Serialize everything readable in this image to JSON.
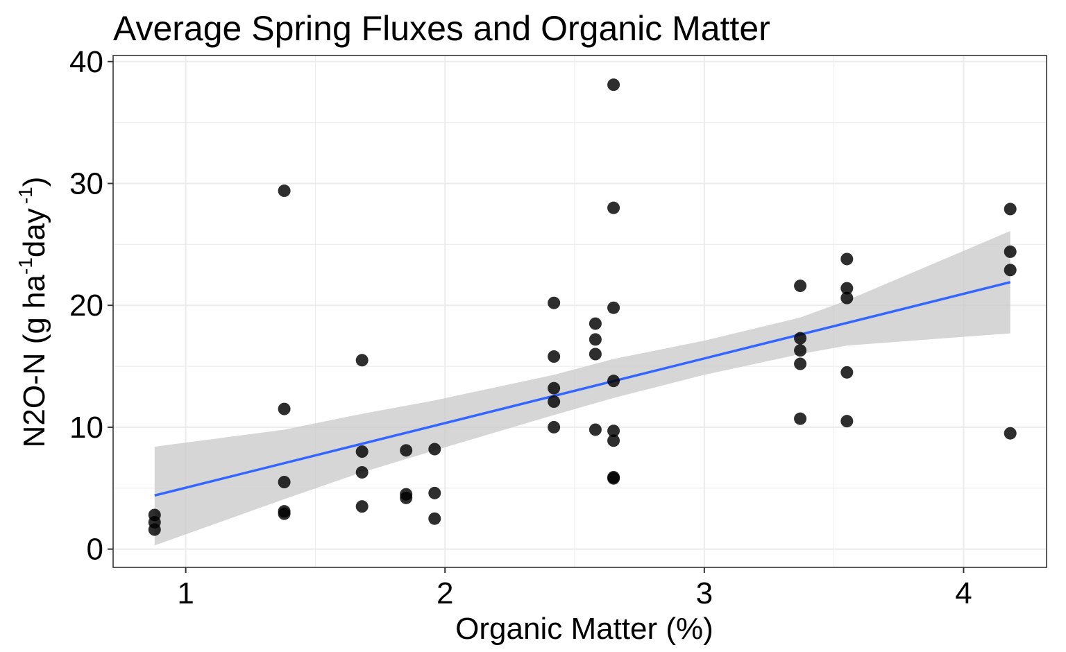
{
  "chart_data": {
    "type": "scatter",
    "title": "Average Spring Fluxes and Organic Matter",
    "xlabel": "Organic Matter (%)",
    "ylabel": {
      "base": "N2O-N (g ha",
      "sup1": "-1",
      "mid": "day",
      "sup2": "-1",
      "end": ")"
    },
    "xlim": [
      0.72,
      4.32
    ],
    "ylim": [
      -1.5,
      40.5
    ],
    "x_ticks": [
      1,
      2,
      3,
      4
    ],
    "y_ticks": [
      0,
      10,
      20,
      30,
      40
    ],
    "grid": true,
    "legend": "none",
    "colors": {
      "points": "#000000",
      "fit_line": "#3366ff",
      "confidence_band": "#cccccc",
      "grid": "#ebebeb",
      "panel_border": "#333333"
    },
    "points": [
      {
        "x": 0.88,
        "y": 2.8
      },
      {
        "x": 0.88,
        "y": 2.2
      },
      {
        "x": 0.88,
        "y": 1.6
      },
      {
        "x": 1.38,
        "y": 29.4
      },
      {
        "x": 1.38,
        "y": 11.5
      },
      {
        "x": 1.38,
        "y": 5.5
      },
      {
        "x": 1.38,
        "y": 3.1
      },
      {
        "x": 1.38,
        "y": 2.9
      },
      {
        "x": 1.68,
        "y": 15.5
      },
      {
        "x": 1.68,
        "y": 8.0
      },
      {
        "x": 1.68,
        "y": 6.3
      },
      {
        "x": 1.68,
        "y": 3.5
      },
      {
        "x": 1.85,
        "y": 8.1
      },
      {
        "x": 1.85,
        "y": 4.5
      },
      {
        "x": 1.85,
        "y": 4.2
      },
      {
        "x": 1.96,
        "y": 8.2
      },
      {
        "x": 1.96,
        "y": 4.6
      },
      {
        "x": 1.96,
        "y": 2.5
      },
      {
        "x": 2.42,
        "y": 20.2
      },
      {
        "x": 2.42,
        "y": 15.8
      },
      {
        "x": 2.42,
        "y": 13.2
      },
      {
        "x": 2.42,
        "y": 12.1
      },
      {
        "x": 2.42,
        "y": 10.0
      },
      {
        "x": 2.58,
        "y": 18.5
      },
      {
        "x": 2.58,
        "y": 17.2
      },
      {
        "x": 2.58,
        "y": 16.0
      },
      {
        "x": 2.58,
        "y": 9.8
      },
      {
        "x": 2.65,
        "y": 38.1
      },
      {
        "x": 2.65,
        "y": 28.0
      },
      {
        "x": 2.65,
        "y": 19.8
      },
      {
        "x": 2.65,
        "y": 13.8
      },
      {
        "x": 2.65,
        "y": 9.7
      },
      {
        "x": 2.65,
        "y": 8.9
      },
      {
        "x": 2.65,
        "y": 5.9
      },
      {
        "x": 2.65,
        "y": 5.8
      },
      {
        "x": 3.37,
        "y": 21.6
      },
      {
        "x": 3.37,
        "y": 17.3
      },
      {
        "x": 3.37,
        "y": 16.3
      },
      {
        "x": 3.37,
        "y": 15.2
      },
      {
        "x": 3.37,
        "y": 10.7
      },
      {
        "x": 3.55,
        "y": 23.8
      },
      {
        "x": 3.55,
        "y": 21.4
      },
      {
        "x": 3.55,
        "y": 20.6
      },
      {
        "x": 3.55,
        "y": 14.5
      },
      {
        "x": 3.55,
        "y": 10.5
      },
      {
        "x": 4.18,
        "y": 27.9
      },
      {
        "x": 4.18,
        "y": 24.4
      },
      {
        "x": 4.18,
        "y": 22.9
      },
      {
        "x": 4.18,
        "y": 9.5
      }
    ],
    "fit_line": {
      "x": [
        0.88,
        4.18
      ],
      "y": [
        4.4,
        21.9
      ]
    },
    "confidence_band": {
      "x": [
        0.88,
        1.38,
        1.68,
        1.96,
        2.42,
        2.65,
        3.0,
        3.37,
        3.55,
        4.18
      ],
      "lower": [
        0.3,
        4.1,
        6.3,
        8.1,
        11.0,
        12.4,
        14.3,
        16.0,
        16.7,
        17.7
      ],
      "upper": [
        8.4,
        9.8,
        11.1,
        12.2,
        14.3,
        15.6,
        17.1,
        19.0,
        20.4,
        26.1
      ]
    }
  }
}
